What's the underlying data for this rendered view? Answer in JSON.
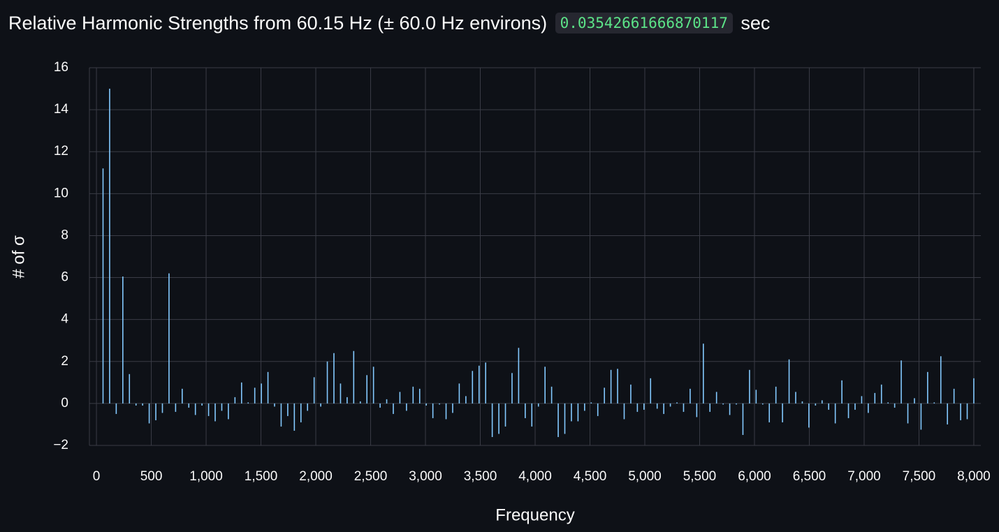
{
  "header": {
    "title": "Relative Harmonic Strengths from 60.15 Hz (± 60.0 Hz environs)",
    "elapsed": "0.03542661666870117",
    "unit": "sec"
  },
  "chart_data": {
    "type": "bar",
    "x_label": "Frequency",
    "y_label": "# of σ",
    "color": "#83c9ff",
    "grid": true,
    "x": [
      60.15,
      120.3,
      180.45,
      240.6,
      300.75,
      360.9,
      421.05,
      481.2,
      541.35,
      601.5,
      661.65,
      721.8,
      781.95,
      842.1,
      902.25,
      962.4,
      1022.55,
      1082.7,
      1142.85,
      1203,
      1263.15,
      1323.3,
      1383.45,
      1443.6,
      1503.75,
      1563.9,
      1624.05,
      1684.2,
      1744.35,
      1804.5,
      1864.65,
      1924.8,
      1984.95,
      2045.1,
      2105.25,
      2165.4,
      2225.55,
      2285.7,
      2345.85,
      2406,
      2466.15,
      2526.3,
      2586.45,
      2646.6,
      2706.75,
      2766.9,
      2827.05,
      2887.2,
      2947.35,
      3007.5,
      3067.65,
      3127.8,
      3187.95,
      3248.1,
      3308.25,
      3368.4,
      3428.55,
      3488.7,
      3548.85,
      3609,
      3669.15,
      3729.3,
      3789.45,
      3849.6,
      3909.75,
      3969.9,
      4030.05,
      4090.2,
      4150.35,
      4210.5,
      4270.65,
      4330.8,
      4390.95,
      4451.1,
      4511.25,
      4571.4,
      4631.55,
      4691.7,
      4751.85,
      4812,
      4872.15,
      4932.3,
      4992.45,
      5052.6,
      5112.75,
      5172.9,
      5233.05,
      5293.2,
      5353.35,
      5413.5,
      5473.65,
      5533.8,
      5593.95,
      5654.1,
      5714.25,
      5774.4,
      5834.55,
      5894.7,
      5954.85,
      6015,
      6075.15,
      6135.3,
      6195.45,
      6255.6,
      6315.75,
      6375.9,
      6436.05,
      6496.2,
      6556.35,
      6616.5,
      6676.65,
      6736.8,
      6796.95,
      6857.1,
      6917.25,
      6977.4,
      7037.55,
      7097.7,
      7157.85,
      7218,
      7278.15,
      7338.3,
      7398.45,
      7458.6,
      7518.75,
      7578.9,
      7639.05,
      7699.2,
      7759.35,
      7819.5,
      7879.65,
      7939.8,
      7999.95
    ],
    "values": [
      11.2,
      15.0,
      -0.5,
      6.05,
      1.4,
      -0.1,
      -0.1,
      -0.95,
      -0.8,
      -0.45,
      6.2,
      -0.4,
      0.7,
      -0.2,
      -0.55,
      -0.1,
      -0.6,
      -0.85,
      -0.35,
      -0.75,
      0.3,
      1.0,
      0.05,
      0.75,
      0.95,
      1.5,
      -0.15,
      -1.1,
      -0.6,
      -1.3,
      -0.9,
      -0.35,
      1.25,
      -0.15,
      2.0,
      2.4,
      0.95,
      0.3,
      2.5,
      0.1,
      1.35,
      1.75,
      -0.2,
      0.2,
      -0.5,
      0.55,
      -0.35,
      0.8,
      0.7,
      -0.1,
      -0.7,
      -0.05,
      -0.75,
      -0.45,
      0.95,
      0.35,
      1.55,
      1.8,
      1.95,
      -1.6,
      -1.45,
      -1.1,
      1.45,
      2.65,
      -0.7,
      -1.1,
      -0.15,
      1.75,
      0.8,
      -1.6,
      -1.45,
      -0.85,
      -0.85,
      -0.35,
      0.05,
      -0.6,
      0.75,
      1.6,
      1.65,
      -0.75,
      0.9,
      -0.4,
      -0.3,
      1.2,
      -0.25,
      -0.5,
      -0.15,
      0.05,
      -0.4,
      0.7,
      -0.65,
      2.85,
      -0.4,
      0.55,
      -0.05,
      -0.55,
      -0.05,
      -1.5,
      1.6,
      0.65,
      -0.05,
      -0.9,
      0.8,
      -0.9,
      2.1,
      0.55,
      0.1,
      -1.15,
      -0.1,
      0.15,
      -0.3,
      -0.95,
      1.1,
      -0.7,
      -0.3,
      0.35,
      -0.45,
      0.5,
      0.9,
      0.05,
      -0.2,
      2.05,
      -0.95,
      0.25,
      -1.25,
      1.5,
      0.05,
      2.25,
      -1.0,
      0.7,
      -0.8,
      -0.75,
      1.2
    ],
    "xlim": [
      -64,
      8064
    ],
    "xticks": [
      0,
      500,
      {
        "value": 1000,
        "label": "1,000"
      },
      {
        "value": 1500,
        "label": "1,500"
      },
      {
        "value": 2000,
        "label": "2,000"
      },
      {
        "value": 2500,
        "label": "2,500"
      },
      {
        "value": 3000,
        "label": "3,000"
      },
      {
        "value": 3500,
        "label": "3,500"
      },
      {
        "value": 4000,
        "label": "4,000"
      },
      {
        "value": 4500,
        "label": "4,500"
      },
      {
        "value": 5000,
        "label": "5,000"
      },
      {
        "value": 5500,
        "label": "5,500"
      },
      {
        "value": 6000,
        "label": "6,000"
      },
      {
        "value": 6500,
        "label": "6,500"
      },
      {
        "value": 7000,
        "label": "7,000"
      },
      {
        "value": 7500,
        "label": "7,500"
      },
      {
        "value": 8000,
        "label": "8,000"
      }
    ],
    "ylim": [
      -2,
      16
    ],
    "yticks": [
      {
        "value": -2,
        "label": "−2"
      },
      0,
      2,
      4,
      6,
      8,
      10,
      12,
      14,
      16
    ]
  }
}
